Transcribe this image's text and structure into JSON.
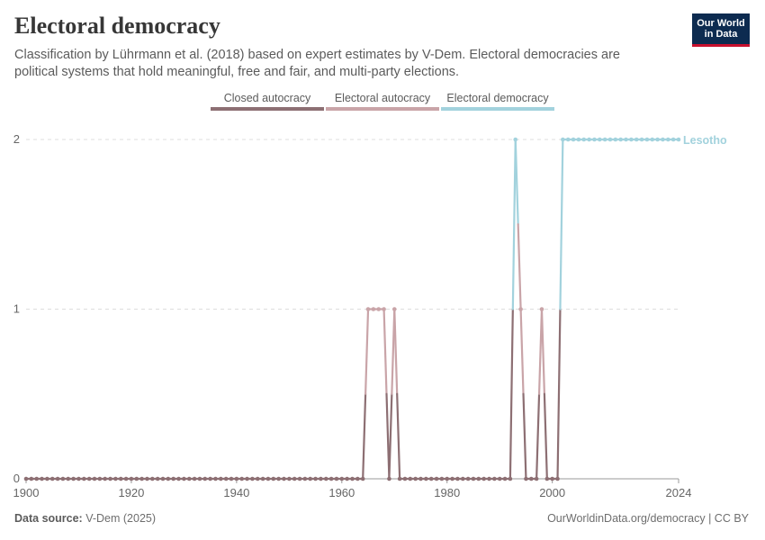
{
  "header": {
    "title": "Electoral democracy",
    "subtitle": "Classification by Lührmann et al. (2018) based on expert estimates by V-Dem. Electoral democracies are political systems that hold meaningful, free and fair, and multi-party elections."
  },
  "logo": {
    "line1": "Our World",
    "line2": "in Data"
  },
  "legend": [
    {
      "label": "Closed autocracy",
      "color": "#8d6f73"
    },
    {
      "label": "Electoral autocracy",
      "color": "#c9a4a8"
    },
    {
      "label": "Electoral democracy",
      "color": "#a2d2dd"
    }
  ],
  "footer": {
    "source_label": "Data source:",
    "source": "V-Dem (2025)",
    "credit": "OurWorldinData.org/democracy | CC BY"
  },
  "chart_data": {
    "type": "line",
    "title": "Electoral democracy",
    "xlabel": "",
    "ylabel": "",
    "xlim": [
      1900,
      2024
    ],
    "ylim": [
      0,
      2
    ],
    "x_ticks": [
      "1900",
      "1920",
      "1940",
      "1960",
      "1980",
      "2000",
      "2024"
    ],
    "y_ticks": [
      "0",
      "1",
      "2"
    ],
    "grid": "horizontal dashed",
    "series": [
      {
        "name": "Lesotho",
        "points": [
          {
            "x": 1900,
            "y": 0
          },
          {
            "x": 1964,
            "y": 0
          },
          {
            "x": 1965,
            "y": 1
          },
          {
            "x": 1966,
            "y": 1
          },
          {
            "x": 1967,
            "y": 1
          },
          {
            "x": 1968,
            "y": 1
          },
          {
            "x": 1969,
            "y": 0
          },
          {
            "x": 1970,
            "y": 1
          },
          {
            "x": 1971,
            "y": 0
          },
          {
            "x": 1992,
            "y": 0
          },
          {
            "x": 1993,
            "y": 2
          },
          {
            "x": 1994,
            "y": 1
          },
          {
            "x": 1995,
            "y": 0
          },
          {
            "x": 1997,
            "y": 0
          },
          {
            "x": 1998,
            "y": 1
          },
          {
            "x": 1999,
            "y": 0
          },
          {
            "x": 2001,
            "y": 0
          },
          {
            "x": 2002,
            "y": 2
          },
          {
            "x": 2024,
            "y": 2
          }
        ]
      }
    ]
  }
}
